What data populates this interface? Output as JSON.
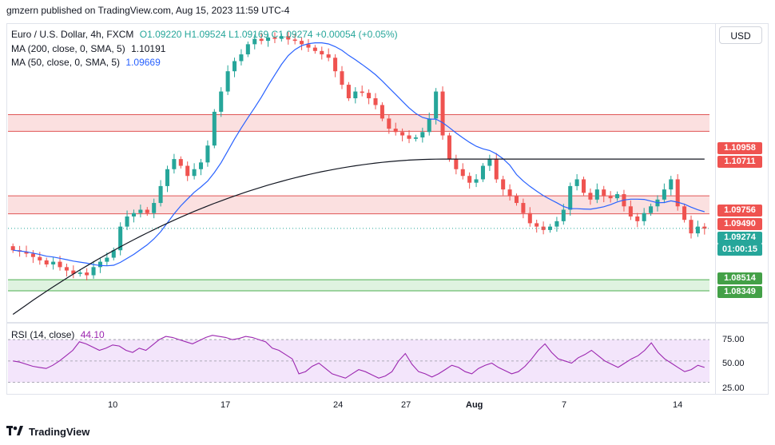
{
  "header": {
    "publisher": "gmzern published on TradingView.com, Aug 15, 2023 11:59 UTC-4"
  },
  "currency_button": "USD",
  "legend": {
    "symbol": "Euro / U.S. Dollar, 4h, FXCM",
    "ohlc": "O1.09220 H1.09524 L1.09169 C1.09274 +0.00054 (+0.05%)",
    "ma200_label": "MA (200, close, 0, SMA, 5)",
    "ma200_value": "1.10191",
    "ma50_label": "MA (50, close, 0, SMA, 5)",
    "ma50_value": "1.09669",
    "rsi_label": "RSI (14, close)",
    "rsi_value": "44.10"
  },
  "price_labels": {
    "r1_upper": "1.10958",
    "r1_lower": "1.10711",
    "r2_upper": "1.09756",
    "r2_lower": "1.09490",
    "last": "1.09274",
    "countdown": "01:00:15",
    "s_upper": "1.08514",
    "s_lower": "1.08349"
  },
  "rsi_ticks": [
    "75.00",
    "50.00",
    "25.00"
  ],
  "x_ticks": [
    "10",
    "17",
    "24",
    "27",
    "Aug",
    "7",
    "14"
  ],
  "footer": {
    "brand": "TradingView"
  },
  "colors": {
    "up": "#26a69a",
    "down": "#ef5350",
    "ma50": "#2962ff",
    "ma200": "#131722",
    "resist_fill": "#f9d5d5",
    "resist_line": "#e05555",
    "support_fill": "#d4efd6",
    "support_line": "#4caf50",
    "rsi_line": "#9c27b0",
    "rsi_band": "#f3e5fb",
    "last_price": "#26a69a"
  },
  "chart_data": [
    {
      "type": "candlestick",
      "title": "Euro / U.S. Dollar, 4h, FXCM",
      "ylim": [
        1.079,
        1.123
      ],
      "x_tick_labels": [
        "10",
        "17",
        "24",
        "27",
        "Aug",
        "7",
        "14"
      ],
      "close_path": [
        1.0895,
        1.0893,
        1.089,
        1.0885,
        1.088,
        1.0874,
        1.0878,
        1.087,
        1.0865,
        1.086,
        1.0862,
        1.0858,
        1.087,
        1.0878,
        1.0884,
        1.0895,
        1.093,
        1.0945,
        1.095,
        1.0955,
        1.095,
        1.0965,
        1.099,
        1.1015,
        1.103,
        1.102,
        1.1005,
        1.1015,
        1.1025,
        1.105,
        1.11,
        1.113,
        1.116,
        1.1175,
        1.1185,
        1.12,
        1.1208,
        1.1205,
        1.121,
        1.1208,
        1.1212,
        1.1207,
        1.1205,
        1.12,
        1.1195,
        1.119,
        1.1185,
        1.118,
        1.116,
        1.114,
        1.112,
        1.113,
        1.1128,
        1.112,
        1.111,
        1.109,
        1.1075,
        1.107,
        1.1065,
        1.106,
        1.1062,
        1.107,
        1.109,
        1.113,
        1.1065,
        1.103,
        1.1015,
        1.1005,
        1.0995,
        1.1,
        1.102,
        1.103,
        1.1,
        1.0985,
        1.0975,
        1.0965,
        1.095,
        1.0935,
        1.093,
        1.0925,
        1.093,
        1.0938,
        1.0955,
        1.099,
        1.1,
        1.098,
        1.097,
        1.0985,
        1.0975,
        1.0972,
        1.0978,
        1.096,
        1.0945,
        1.0938,
        1.095,
        1.096,
        1.097,
        1.0985,
        1.1,
        1.096,
        1.094,
        1.092,
        1.093,
        1.0927
      ],
      "series": [
        {
          "name": "MA (200, close, 0, SMA, 5)",
          "value": 1.10191
        },
        {
          "name": "MA (50, close, 0, SMA, 5)",
          "value": 1.09669
        }
      ],
      "levels": {
        "resistance_1": [
          1.10711,
          1.10958
        ],
        "resistance_2": [
          1.0949,
          1.09756
        ],
        "support": [
          1.08349,
          1.08514
        ],
        "last": 1.09274
      }
    },
    {
      "type": "line",
      "title": "RSI (14, close)",
      "ylim": [
        20,
        85
      ],
      "y_ticks": [
        75,
        50,
        25
      ],
      "band": [
        30,
        70
      ],
      "last_value": 44.1,
      "values": [
        50,
        49,
        47,
        45,
        44,
        43,
        46,
        50,
        55,
        60,
        68,
        66,
        63,
        60,
        62,
        65,
        64,
        60,
        58,
        62,
        60,
        65,
        70,
        73,
        72,
        70,
        68,
        66,
        69,
        72,
        74,
        73,
        72,
        70,
        71,
        73,
        72,
        70,
        68,
        62,
        60,
        56,
        52,
        38,
        40,
        45,
        48,
        43,
        38,
        36,
        34,
        38,
        42,
        40,
        37,
        34,
        36,
        40,
        50,
        57,
        47,
        40,
        38,
        35,
        38,
        42,
        46,
        44,
        40,
        38,
        43,
        46,
        48,
        44,
        41,
        38,
        40,
        45,
        52,
        60,
        66,
        58,
        52,
        50,
        48,
        53,
        56,
        60,
        55,
        50,
        47,
        44,
        48,
        52,
        55,
        60,
        67,
        58,
        52,
        48,
        44,
        40,
        42,
        46,
        44
      ]
    }
  ]
}
